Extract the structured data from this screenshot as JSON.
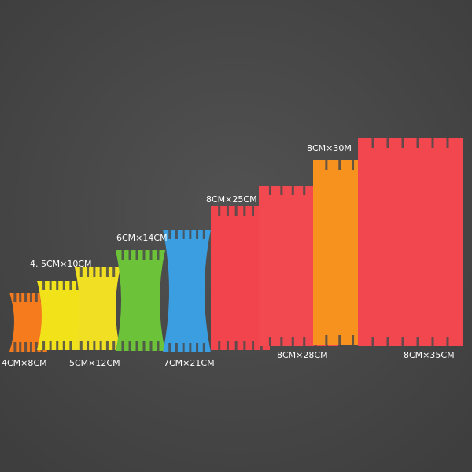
{
  "labels": [
    "4CM×8CM",
    "4. 5CM×10CM",
    "5CM×12CM",
    "6CM×14CM",
    "7CM×21CM",
    "8CM×25CM",
    "8CM×28CM",
    "8CM×30M",
    "8CM×35CM"
  ]
}
